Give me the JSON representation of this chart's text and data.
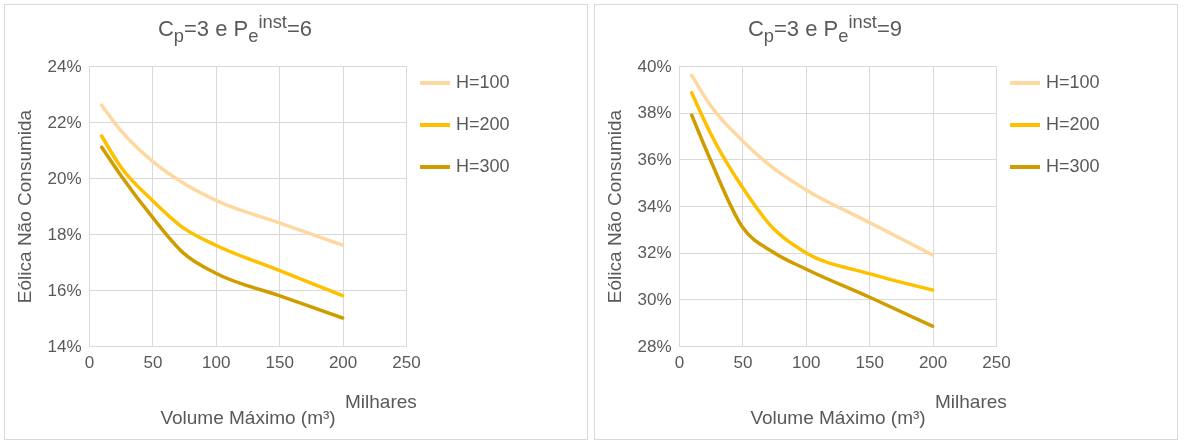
{
  "chart_data": [
    {
      "type": "line",
      "title": "C$_{p}$=3 e P$_{e}$$^{inst}$=6",
      "xlabel": "Volume Máximo (m³)",
      "ylabel": "Eólica Não Consumida",
      "annotations": [
        "Milhares"
      ],
      "x": [
        10,
        25,
        50,
        75,
        100,
        150,
        200
      ],
      "xlim": [
        0,
        250
      ],
      "xticks": [
        0,
        50,
        100,
        150,
        200,
        250
      ],
      "ylim": [
        14,
        24
      ],
      "yticks": [
        {
          "value": 14,
          "label": "14%"
        },
        {
          "value": 16,
          "label": "16%"
        },
        {
          "value": 18,
          "label": "18%"
        },
        {
          "value": 20,
          "label": "20%"
        },
        {
          "value": 22,
          "label": "22%"
        },
        {
          "value": 24,
          "label": "24%"
        }
      ],
      "grid": true,
      "legend": "right",
      "marker": "none",
      "line_style": "solid",
      "series": [
        {
          "name": "H=100",
          "color": "#ffd8a0",
          "values": [
            22.6,
            21.7,
            20.6,
            19.8,
            19.2,
            18.4,
            17.6
          ]
        },
        {
          "name": "H=200",
          "color": "#ffc000",
          "values": [
            21.5,
            20.4,
            19.2,
            18.2,
            17.6,
            16.7,
            15.8
          ]
        },
        {
          "name": "H=300",
          "color": "#d09d00",
          "values": [
            21.1,
            20.1,
            18.6,
            17.3,
            16.6,
            15.8,
            15.0
          ]
        }
      ]
    },
    {
      "type": "line",
      "title": "C$_{p}$=3 e P$_{e}$$^{inst}$=9",
      "xlabel": "Volume Máximo (m³)",
      "ylabel": "Eólica Não Consumida",
      "annotations": [
        "Milhares"
      ],
      "x": [
        10,
        25,
        50,
        75,
        100,
        150,
        200
      ],
      "xlim": [
        0,
        250
      ],
      "xticks": [
        0,
        50,
        100,
        150,
        200,
        250
      ],
      "ylim": [
        28,
        40
      ],
      "yticks": [
        {
          "value": 28,
          "label": "28%"
        },
        {
          "value": 30,
          "label": "30%"
        },
        {
          "value": 32,
          "label": "32%"
        },
        {
          "value": 34,
          "label": "34%"
        },
        {
          "value": 36,
          "label": "36%"
        },
        {
          "value": 38,
          "label": "38%"
        },
        {
          "value": 40,
          "label": "40%"
        }
      ],
      "grid": true,
      "legend": "right",
      "marker": "none",
      "line_style": "solid",
      "series": [
        {
          "name": "H=100",
          "color": "#ffd8a0",
          "values": [
            39.6,
            38.3,
            36.8,
            35.6,
            34.7,
            33.3,
            31.9
          ]
        },
        {
          "name": "H=200",
          "color": "#ffc000",
          "values": [
            38.85,
            37.1,
            34.8,
            33.0,
            32.0,
            31.1,
            30.4
          ]
        },
        {
          "name": "H=300",
          "color": "#d09d00",
          "values": [
            37.9,
            35.95,
            33.1,
            32.0,
            31.3,
            30.1,
            28.85
          ]
        }
      ]
    }
  ]
}
